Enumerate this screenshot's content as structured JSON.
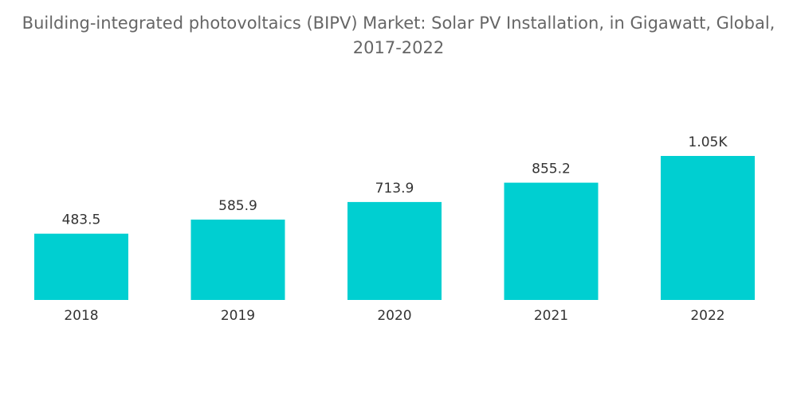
{
  "chart_data": {
    "type": "bar",
    "title_line1": "Building-integrated photovoltaics (BIPV) Market: Solar PV Installation, in Gigawatt, Global,",
    "title_line2": "2017-2022",
    "categories": [
      "2018",
      "2019",
      "2020",
      "2021",
      "2022"
    ],
    "values": [
      483.5,
      585.9,
      713.9,
      855.2,
      1050
    ],
    "value_labels": [
      "483.5",
      "585.9",
      "713.9",
      "855.2",
      "1.05K"
    ],
    "xlabel": "",
    "ylabel": "",
    "ylim": [
      0,
      1050
    ],
    "grid": false,
    "legend": "none",
    "bar_color": "#00cfd1"
  }
}
